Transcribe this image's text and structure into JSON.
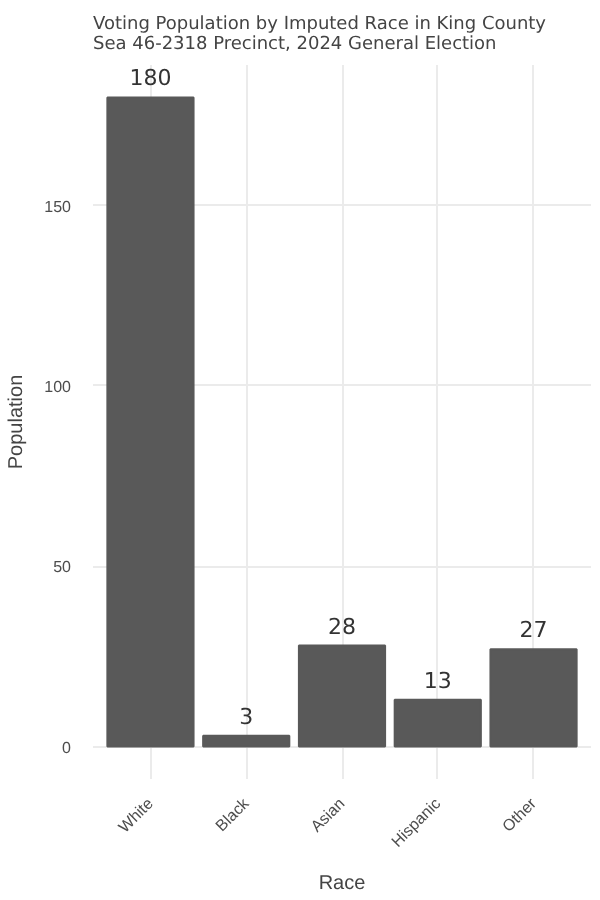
{
  "chart_data": {
    "type": "bar",
    "title": "Voting Population by Imputed Race in King County\nSea 46-2318 Precinct,  2024 General Election",
    "xlabel": "Race",
    "ylabel": "Population",
    "categories": [
      "White",
      "Black",
      "Asian",
      "Hispanic",
      "Other"
    ],
    "values": [
      180,
      3,
      28,
      13,
      27
    ],
    "color": "#595959",
    "ylim": [
      -9,
      189
    ],
    "yticks": [
      0,
      50,
      100,
      150
    ],
    "grid": true,
    "data_labels": true
  }
}
